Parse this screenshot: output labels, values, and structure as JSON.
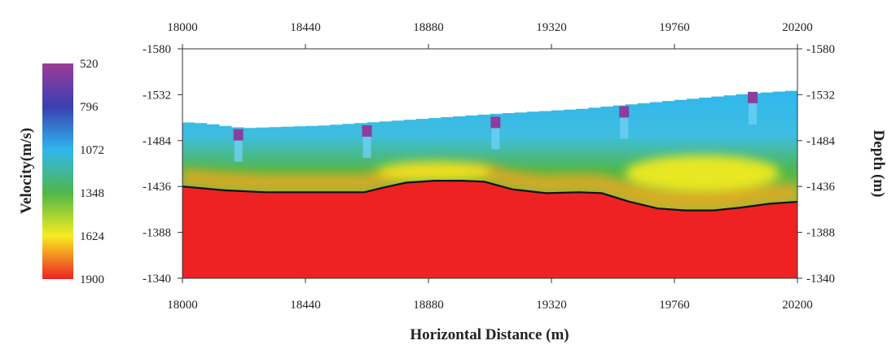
{
  "chart_data": {
    "type": "heatmap",
    "title": "",
    "xlabel": "Horizontal Distance (m)",
    "ylabel_right": "Depth (m)",
    "x_ticks": [
      18000,
      18440,
      18880,
      19320,
      19760,
      20200
    ],
    "x_ticks_labels": [
      "18000",
      "18440",
      "18880",
      "19320",
      "19760",
      "20200"
    ],
    "y_ticks": [
      -1580,
      -1532,
      -1484,
      -1436,
      -1388,
      -1340
    ],
    "y_ticks_labels": [
      "-1580",
      "-1532",
      "-1484",
      "-1436",
      "-1388",
      "-1340"
    ],
    "xlim": [
      18000,
      20200
    ],
    "ylim": [
      -1580,
      -1340
    ],
    "colorbar": {
      "label": "Velocity(m/s)",
      "ticks": [
        520,
        796,
        1072,
        1348,
        1624,
        1900
      ],
      "ticks_labels": [
        "520",
        "796",
        "1072",
        "1348",
        "1624",
        "1900"
      ],
      "colors": [
        "#9c3c97",
        "#3a3fb0",
        "#2fb7ee",
        "#4fb749",
        "#f7ec1f",
        "#ee2223"
      ]
    },
    "top_surface": {
      "x": [
        18000,
        18060,
        18200,
        18500,
        18800,
        19100,
        19400,
        19700,
        20000,
        20200
      ],
      "y": [
        -1503,
        -1502,
        -1497,
        -1500,
        -1506,
        -1512,
        -1517,
        -1525,
        -1533,
        -1537
      ]
    },
    "interface_line": {
      "color": "#111111",
      "x": [
        18000,
        18150,
        18300,
        18500,
        18650,
        18720,
        18800,
        18900,
        19000,
        19080,
        19180,
        19300,
        19420,
        19500,
        19600,
        19700,
        19800,
        19900,
        20000,
        20100,
        20200
      ],
      "y": [
        -1436,
        -1432,
        -1430,
        -1430,
        -1430,
        -1435,
        -1440,
        -1442,
        -1442,
        -1441,
        -1433,
        -1429,
        -1430,
        -1429,
        -1420,
        -1413,
        -1411,
        -1411,
        -1414,
        -1418,
        -1420
      ]
    },
    "receivers": {
      "x": [
        18200,
        18660,
        19120,
        19580,
        20040
      ],
      "y": [
        -1496,
        -1500,
        -1509,
        -1520,
        -1535
      ]
    }
  }
}
